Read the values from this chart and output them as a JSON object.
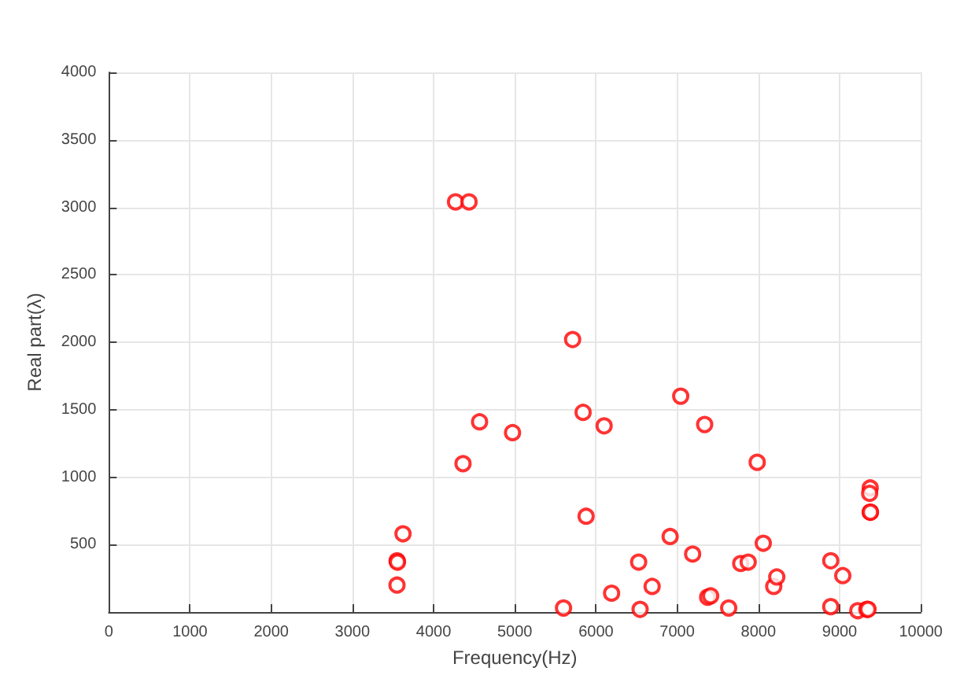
{
  "chart_data": {
    "type": "scatter",
    "xlabel": "Frequency(Hz)",
    "ylabel": "Real part(λ)",
    "x": [
      3549,
      3550,
      3555,
      3623,
      4270,
      4436,
      4362,
      4566,
      4972,
      5712,
      5841,
      5878,
      6100,
      5600,
      6192,
      6543,
      6691,
      6525,
      6913,
      7043,
      7338,
      7985,
      7190,
      7782,
      7874,
      7375,
      7412,
      7634,
      8060,
      8189,
      8226,
      8891,
      9039,
      8891,
      9377,
      9370,
      9377,
      9380,
      9224,
      9335,
      9350
    ],
    "values": [
      200,
      380,
      370,
      580,
      3040,
      3040,
      1100,
      1410,
      1330,
      2020,
      1480,
      710,
      1380,
      30,
      140,
      20,
      190,
      370,
      560,
      1600,
      1390,
      1110,
      430,
      360,
      370,
      110,
      120,
      30,
      510,
      190,
      260,
      380,
      270,
      40,
      920,
      880,
      740,
      740,
      10,
      20,
      20
    ],
    "color": "#ff0000",
    "marker": "circle",
    "grid": true,
    "xlim": [
      0,
      10000
    ],
    "xticks": [
      0,
      1000,
      2000,
      3000,
      4000,
      5000,
      6000,
      7000,
      8000,
      9000,
      10000
    ],
    "ylim": [
      0,
      4000
    ],
    "yticks": [
      {
        "value": 0,
        "label": null
      },
      500,
      1000,
      1500,
      2000,
      2500,
      3000,
      3500,
      4000
    ]
  }
}
